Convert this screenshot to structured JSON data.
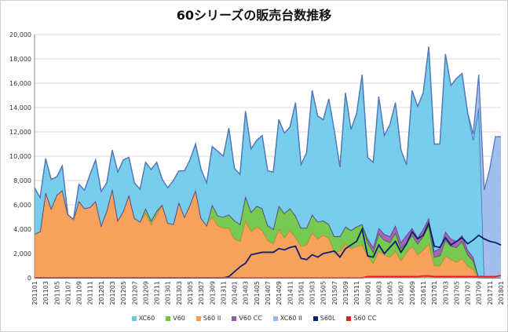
{
  "chart_data": {
    "type": "area",
    "title": "60シリーズの販売台数推移",
    "xlabel": "",
    "ylabel": "",
    "ylim": [
      0,
      20000
    ],
    "yticks": [
      0,
      2000,
      4000,
      6000,
      8000,
      10000,
      12000,
      14000,
      16000,
      18000,
      20000
    ],
    "ytick_labels": [
      "0",
      "2,000",
      "4,000",
      "6,000",
      "8,000",
      "10,000",
      "12,000",
      "14,000",
      "16,000",
      "18,000",
      "20,000"
    ],
    "grid": true,
    "legend_position": "bottom",
    "x": [
      "201101",
      "201102",
      "201103",
      "201104",
      "201105",
      "201106",
      "201107",
      "201108",
      "201109",
      "201110",
      "201111",
      "201112",
      "201201",
      "201202",
      "201203",
      "201204",
      "201205",
      "201206",
      "201207",
      "201208",
      "201209",
      "201210",
      "201211",
      "201212",
      "201301",
      "201302",
      "201303",
      "201304",
      "201305",
      "201306",
      "201307",
      "201308",
      "201309",
      "201310",
      "201311",
      "201312",
      "201401",
      "201402",
      "201403",
      "201404",
      "201405",
      "201406",
      "201407",
      "201408",
      "201409",
      "201410",
      "201411",
      "201412",
      "201501",
      "201502",
      "201503",
      "201504",
      "201505",
      "201506",
      "201507",
      "201508",
      "201509",
      "201510",
      "201511",
      "201512",
      "201601",
      "201602",
      "201603",
      "201604",
      "201605",
      "201606",
      "201607",
      "201608",
      "201609",
      "201610",
      "201611",
      "201612",
      "201701",
      "201702",
      "201703",
      "201704",
      "201705",
      "201706",
      "201707",
      "201708",
      "201709",
      "201710",
      "201711",
      "201712",
      "201801"
    ],
    "series": [
      {
        "name": "S60 II",
        "color": "#f59a4f",
        "kind": "area",
        "values": [
          3600,
          3800,
          7000,
          5700,
          6800,
          7200,
          5200,
          4800,
          6300,
          5700,
          5800,
          6300,
          4300,
          5500,
          7300,
          4700,
          5500,
          6800,
          4900,
          4600,
          5300,
          4400,
          5200,
          6000,
          4500,
          4400,
          6200,
          5000,
          6000,
          7200,
          4900,
          4300,
          5000,
          4300,
          4100,
          4100,
          3200,
          3000,
          4700,
          3800,
          4200,
          3900,
          3100,
          2800,
          4000,
          3300,
          3900,
          3300,
          2600,
          2700,
          3700,
          3200,
          3500,
          3300,
          2100,
          2200,
          2800,
          2400,
          2600,
          2700,
          1800,
          1200,
          2200,
          1900,
          1700,
          2200,
          1400,
          2100,
          2600,
          1900,
          2300,
          2800,
          1000,
          1000,
          1800,
          1500,
          1300,
          1600,
          1000,
          700,
          0,
          0,
          0,
          0,
          0
        ]
      },
      {
        "name": "V60",
        "color": "#6bc442",
        "kind": "area",
        "values": [
          0,
          0,
          0,
          0,
          0,
          0,
          0,
          0,
          0,
          0,
          0,
          0,
          0,
          0,
          0,
          0,
          0,
          0,
          0,
          0,
          400,
          300,
          300,
          0,
          0,
          0,
          0,
          0,
          0,
          0,
          0,
          0,
          1000,
          800,
          900,
          1100,
          1500,
          1400,
          2000,
          1600,
          1700,
          1800,
          1200,
          1200,
          1900,
          2000,
          1800,
          1800,
          1500,
          1400,
          1500,
          1400,
          1200,
          1100,
          1300,
          1200,
          1400,
          1500,
          1600,
          1700,
          1100,
          900,
          1400,
          1200,
          1200,
          1500,
          1000,
          800,
          900,
          900,
          1100,
          1500,
          700,
          800,
          1300,
          1100,
          1200,
          1400,
          900,
          700,
          0,
          0,
          0,
          0,
          0
        ]
      },
      {
        "name": "V60 CC",
        "color": "#9b59b6",
        "kind": "area",
        "values": [
          0,
          0,
          0,
          0,
          0,
          0,
          0,
          0,
          0,
          0,
          0,
          0,
          0,
          0,
          0,
          0,
          0,
          0,
          0,
          0,
          0,
          0,
          0,
          0,
          0,
          0,
          0,
          0,
          0,
          0,
          0,
          0,
          0,
          0,
          0,
          0,
          0,
          0,
          0,
          0,
          0,
          0,
          0,
          0,
          0,
          0,
          0,
          0,
          0,
          0,
          0,
          0,
          0,
          0,
          0,
          0,
          0,
          0,
          0,
          0,
          300,
          400,
          500,
          500,
          500,
          600,
          500,
          600,
          600,
          500,
          600,
          600,
          500,
          600,
          700,
          600,
          500,
          500,
          400,
          300,
          0,
          0,
          0,
          0,
          0
        ]
      },
      {
        "name": "XC60",
        "color": "#6cc8ea",
        "kind": "area",
        "values": [
          3800,
          2800,
          2800,
          2400,
          1500,
          2000,
          0,
          0,
          1400,
          1500,
          2700,
          3400,
          2800,
          2300,
          3200,
          4000,
          4200,
          3100,
          2900,
          2700,
          3800,
          4200,
          4000,
          2100,
          2900,
          3600,
          2600,
          3800,
          3700,
          3800,
          4000,
          3500,
          4800,
          5300,
          5000,
          7100,
          4300,
          4100,
          7000,
          5200,
          5400,
          6000,
          4500,
          4700,
          7100,
          6600,
          6700,
          9300,
          5200,
          6200,
          10200,
          8700,
          8300,
          10300,
          8700,
          5700,
          11000,
          8300,
          9300,
          12300,
          6700,
          7000,
          10800,
          8100,
          9200,
          10100,
          7600,
          5800,
          11300,
          10800,
          11200,
          14100,
          8800,
          8600,
          14600,
          12600,
          13400,
          13300,
          11300,
          9600,
          14000,
          0,
          0,
          0,
          0
        ]
      },
      {
        "name": "XC60 II",
        "color": "#9ab8ea",
        "kind": "area",
        "values": [
          0,
          0,
          0,
          0,
          0,
          0,
          0,
          0,
          0,
          0,
          0,
          0,
          0,
          0,
          0,
          0,
          0,
          0,
          0,
          0,
          0,
          0,
          0,
          0,
          0,
          0,
          0,
          0,
          0,
          0,
          0,
          0,
          0,
          0,
          0,
          0,
          0,
          0,
          0,
          0,
          0,
          0,
          0,
          0,
          0,
          0,
          0,
          0,
          0,
          0,
          0,
          0,
          0,
          0,
          0,
          0,
          0,
          0,
          0,
          0,
          0,
          0,
          0,
          0,
          0,
          0,
          0,
          0,
          0,
          0,
          0,
          0,
          0,
          0,
          0,
          0,
          0,
          0,
          0,
          500,
          2700,
          7200,
          9000,
          11600,
          11600
        ]
      },
      {
        "name": "S60L",
        "color": "#0d1f6e",
        "kind": "line",
        "values": [
          0,
          0,
          0,
          0,
          0,
          0,
          0,
          0,
          0,
          0,
          0,
          0,
          0,
          0,
          0,
          0,
          0,
          0,
          0,
          0,
          0,
          0,
          0,
          0,
          0,
          0,
          0,
          0,
          0,
          0,
          0,
          0,
          0,
          0,
          0,
          100,
          500,
          900,
          1200,
          1900,
          2000,
          2100,
          2100,
          2100,
          2400,
          2300,
          2500,
          2600,
          1600,
          1500,
          1900,
          1700,
          2000,
          2100,
          2200,
          1700,
          2400,
          2700,
          3000,
          4000,
          1800,
          1700,
          2700,
          2000,
          2500,
          3000,
          2100,
          2800,
          3800,
          3200,
          3500,
          4500,
          2600,
          2500,
          3300,
          2700,
          3000,
          3300,
          2800,
          3100,
          3500,
          3200,
          3000,
          2900,
          2700
        ]
      },
      {
        "name": "S60 CC",
        "color": "#e02020",
        "kind": "line",
        "values": [
          0,
          0,
          0,
          0,
          0,
          0,
          0,
          0,
          0,
          0,
          0,
          0,
          0,
          0,
          0,
          0,
          0,
          0,
          0,
          0,
          0,
          0,
          0,
          0,
          0,
          0,
          0,
          0,
          0,
          0,
          0,
          0,
          0,
          0,
          0,
          0,
          0,
          0,
          0,
          0,
          0,
          0,
          0,
          0,
          0,
          0,
          0,
          0,
          0,
          0,
          0,
          0,
          0,
          0,
          0,
          0,
          0,
          0,
          0,
          0,
          100,
          100,
          100,
          100,
          100,
          100,
          100,
          100,
          100,
          100,
          150,
          150,
          100,
          100,
          100,
          100,
          100,
          100,
          100,
          100,
          100,
          100,
          100,
          100,
          200
        ]
      }
    ],
    "legend": [
      "XC60",
      "V60",
      "S60 II",
      "V60 CC",
      "XC60 II",
      "S60L",
      "S60 CC"
    ]
  }
}
